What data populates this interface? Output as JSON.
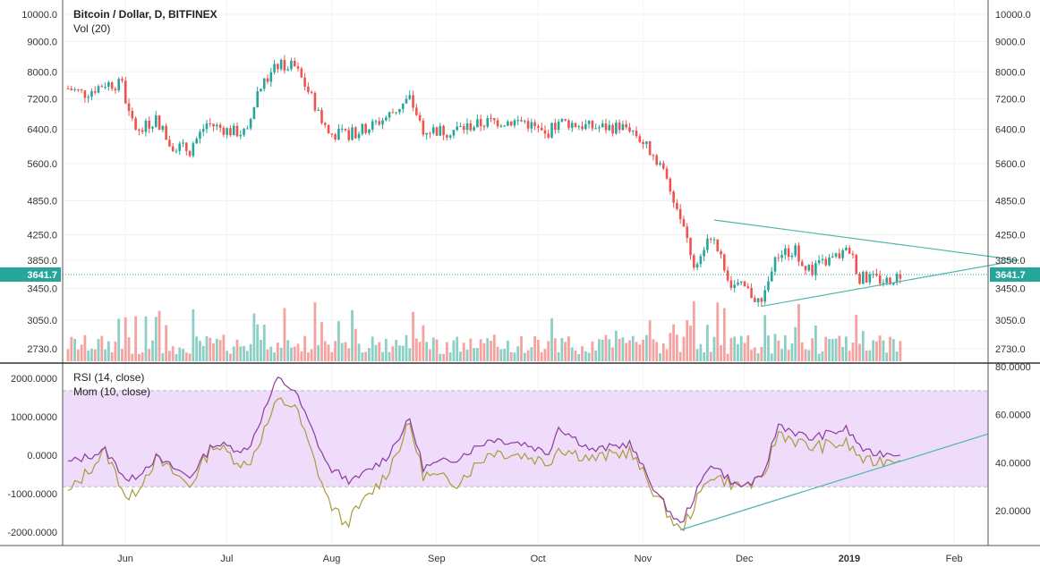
{
  "chart_data": [
    {
      "type": "candlestick",
      "title": "Bitcoin / Dollar, D, BITFINEX",
      "volume_label": "Vol (20)",
      "current_price": "3641.7",
      "colors": {
        "up": "#26a69a",
        "down": "#ef5350",
        "up_vol": "#8ccfc5",
        "down_vol": "#f5a3a1",
        "trendline": "#4db6ac",
        "last_line": "#26a69a"
      },
      "y_axis_ticks": [
        "10000.0",
        "9000.0",
        "8000.0",
        "7200.0",
        "6400.0",
        "5600.0",
        "4850.0",
        "4250.0",
        "3850.0",
        "3450.0",
        "3050.0",
        "2730.0"
      ],
      "y_scale": "log",
      "x_axis_ticks": [
        "Jun",
        "Jul",
        "Aug",
        "Sep",
        "Oct",
        "Nov",
        "Dec",
        "2019",
        "Feb"
      ],
      "close_series": [
        {
          "date": "2018-05-23",
          "close": 7500
        },
        {
          "date": "2018-05-28",
          "close": 7350
        },
        {
          "date": "2018-06-03",
          "close": 7650
        },
        {
          "date": "2018-06-08",
          "close": 7600
        },
        {
          "date": "2018-06-10",
          "close": 6750
        },
        {
          "date": "2018-06-13",
          "close": 6300
        },
        {
          "date": "2018-06-18",
          "close": 6700
        },
        {
          "date": "2018-06-22",
          "close": 6050
        },
        {
          "date": "2018-06-28",
          "close": 5900
        },
        {
          "date": "2018-07-03",
          "close": 6550
        },
        {
          "date": "2018-07-10",
          "close": 6350
        },
        {
          "date": "2018-07-15",
          "close": 6300
        },
        {
          "date": "2018-07-18",
          "close": 7400
        },
        {
          "date": "2018-07-24",
          "close": 8200
        },
        {
          "date": "2018-07-29",
          "close": 8150
        },
        {
          "date": "2018-08-01",
          "close": 7600
        },
        {
          "date": "2018-08-08",
          "close": 6300
        },
        {
          "date": "2018-08-13",
          "close": 6250
        },
        {
          "date": "2018-08-20",
          "close": 6450
        },
        {
          "date": "2018-08-25",
          "close": 6700
        },
        {
          "date": "2018-09-01",
          "close": 7200
        },
        {
          "date": "2018-09-05",
          "close": 6400
        },
        {
          "date": "2018-09-12",
          "close": 6350
        },
        {
          "date": "2018-09-20",
          "close": 6500
        },
        {
          "date": "2018-09-25",
          "close": 6600
        },
        {
          "date": "2018-10-05",
          "close": 6600
        },
        {
          "date": "2018-10-11",
          "close": 6250
        },
        {
          "date": "2018-10-15",
          "close": 6600
        },
        {
          "date": "2018-10-25",
          "close": 6450
        },
        {
          "date": "2018-11-05",
          "close": 6450
        },
        {
          "date": "2018-11-14",
          "close": 5600
        },
        {
          "date": "2018-11-19",
          "close": 4700
        },
        {
          "date": "2018-11-24",
          "close": 3800
        },
        {
          "date": "2018-11-29",
          "close": 4250
        },
        {
          "date": "2018-12-05",
          "close": 3500
        },
        {
          "date": "2018-12-09",
          "close": 3450
        },
        {
          "date": "2018-12-14",
          "close": 3250
        },
        {
          "date": "2018-12-19",
          "close": 3950
        },
        {
          "date": "2018-12-24",
          "close": 4000
        },
        {
          "date": "2018-12-28",
          "close": 3700
        },
        {
          "date": "2019-01-03",
          "close": 3850
        },
        {
          "date": "2019-01-09",
          "close": 4000
        },
        {
          "date": "2019-01-12",
          "close": 3600
        },
        {
          "date": "2019-01-20",
          "close": 3550
        },
        {
          "date": "2019-01-24",
          "close": 3641.7
        }
      ],
      "annotations": [
        {
          "label": "symmetrical triangle upper",
          "from": {
            "date": "2018-11-30",
            "price": 4500
          },
          "to": {
            "date": "2019-02-28",
            "price": 3850
          }
        },
        {
          "label": "symmetrical triangle lower",
          "from": {
            "date": "2018-12-14",
            "price": 3220
          },
          "to": {
            "date": "2019-02-28",
            "price": 3850
          }
        }
      ]
    },
    {
      "type": "line",
      "indicators": [
        "RSI (14, close)",
        "Mom (10, close)"
      ],
      "left_axis_ticks": [
        "2000.0000",
        "1000.0000",
        "0.0000",
        "-1000.0000",
        "-2000.0000"
      ],
      "right_axis_ticks": [
        "80.0000",
        "60.0000",
        "40.0000",
        "20.0000"
      ],
      "rsi_band": [
        30,
        70
      ],
      "colors": {
        "rsi": "#8e3a9e",
        "mom": "#a99b3a",
        "band": "#eedcfa",
        "trendline": "#4db6ac"
      },
      "series": [
        {
          "name": "RSI (14, close)",
          "axis": "right",
          "points": [
            {
              "date": "2018-05-23",
              "value": 40
            },
            {
              "date": "2018-06-03",
              "value": 45
            },
            {
              "date": "2018-06-10",
              "value": 32
            },
            {
              "date": "2018-06-18",
              "value": 42
            },
            {
              "date": "2018-06-28",
              "value": 34
            },
            {
              "date": "2018-07-05",
              "value": 48
            },
            {
              "date": "2018-07-15",
              "value": 45
            },
            {
              "date": "2018-07-24",
              "value": 75
            },
            {
              "date": "2018-07-29",
              "value": 70
            },
            {
              "date": "2018-08-08",
              "value": 38
            },
            {
              "date": "2018-08-15",
              "value": 32
            },
            {
              "date": "2018-08-25",
              "value": 42
            },
            {
              "date": "2018-09-01",
              "value": 58
            },
            {
              "date": "2018-09-05",
              "value": 38
            },
            {
              "date": "2018-09-15",
              "value": 42
            },
            {
              "date": "2018-09-25",
              "value": 50
            },
            {
              "date": "2018-10-05",
              "value": 48
            },
            {
              "date": "2018-10-12",
              "value": 44
            },
            {
              "date": "2018-10-15",
              "value": 55
            },
            {
              "date": "2018-10-25",
              "value": 45
            },
            {
              "date": "2018-11-05",
              "value": 48
            },
            {
              "date": "2018-11-14",
              "value": 25
            },
            {
              "date": "2018-11-20",
              "value": 14
            },
            {
              "date": "2018-11-29",
              "value": 40
            },
            {
              "date": "2018-12-07",
              "value": 30
            },
            {
              "date": "2018-12-14",
              "value": 33
            },
            {
              "date": "2018-12-19",
              "value": 56
            },
            {
              "date": "2018-12-28",
              "value": 50
            },
            {
              "date": "2019-01-08",
              "value": 54
            },
            {
              "date": "2019-01-14",
              "value": 44
            },
            {
              "date": "2019-01-24",
              "value": 44
            }
          ]
        },
        {
          "name": "Mom (10, close)",
          "axis": "left",
          "points": [
            {
              "date": "2018-05-23",
              "value": -1000
            },
            {
              "date": "2018-06-03",
              "value": 100
            },
            {
              "date": "2018-06-10",
              "value": -1200
            },
            {
              "date": "2018-06-18",
              "value": -100
            },
            {
              "date": "2018-06-28",
              "value": -800
            },
            {
              "date": "2018-07-05",
              "value": 300
            },
            {
              "date": "2018-07-15",
              "value": -300
            },
            {
              "date": "2018-07-24",
              "value": 1400
            },
            {
              "date": "2018-07-29",
              "value": 1300
            },
            {
              "date": "2018-08-08",
              "value": -1200
            },
            {
              "date": "2018-08-13",
              "value": -1800
            },
            {
              "date": "2018-08-25",
              "value": -500
            },
            {
              "date": "2018-09-01",
              "value": 800
            },
            {
              "date": "2018-09-05",
              "value": -500
            },
            {
              "date": "2018-09-15",
              "value": -700
            },
            {
              "date": "2018-09-25",
              "value": 100
            },
            {
              "date": "2018-10-05",
              "value": 0
            },
            {
              "date": "2018-10-12",
              "value": -200
            },
            {
              "date": "2018-10-15",
              "value": 200
            },
            {
              "date": "2018-10-25",
              "value": -100
            },
            {
              "date": "2018-11-05",
              "value": 100
            },
            {
              "date": "2018-11-14",
              "value": -1200
            },
            {
              "date": "2018-11-20",
              "value": -2000
            },
            {
              "date": "2018-11-29",
              "value": -500
            },
            {
              "date": "2018-12-07",
              "value": -800
            },
            {
              "date": "2018-12-14",
              "value": -700
            },
            {
              "date": "2018-12-19",
              "value": 600
            },
            {
              "date": "2018-12-28",
              "value": 200
            },
            {
              "date": "2019-01-08",
              "value": 300
            },
            {
              "date": "2019-01-14",
              "value": -200
            },
            {
              "date": "2019-01-24",
              "value": -50
            }
          ]
        }
      ]
    }
  ]
}
